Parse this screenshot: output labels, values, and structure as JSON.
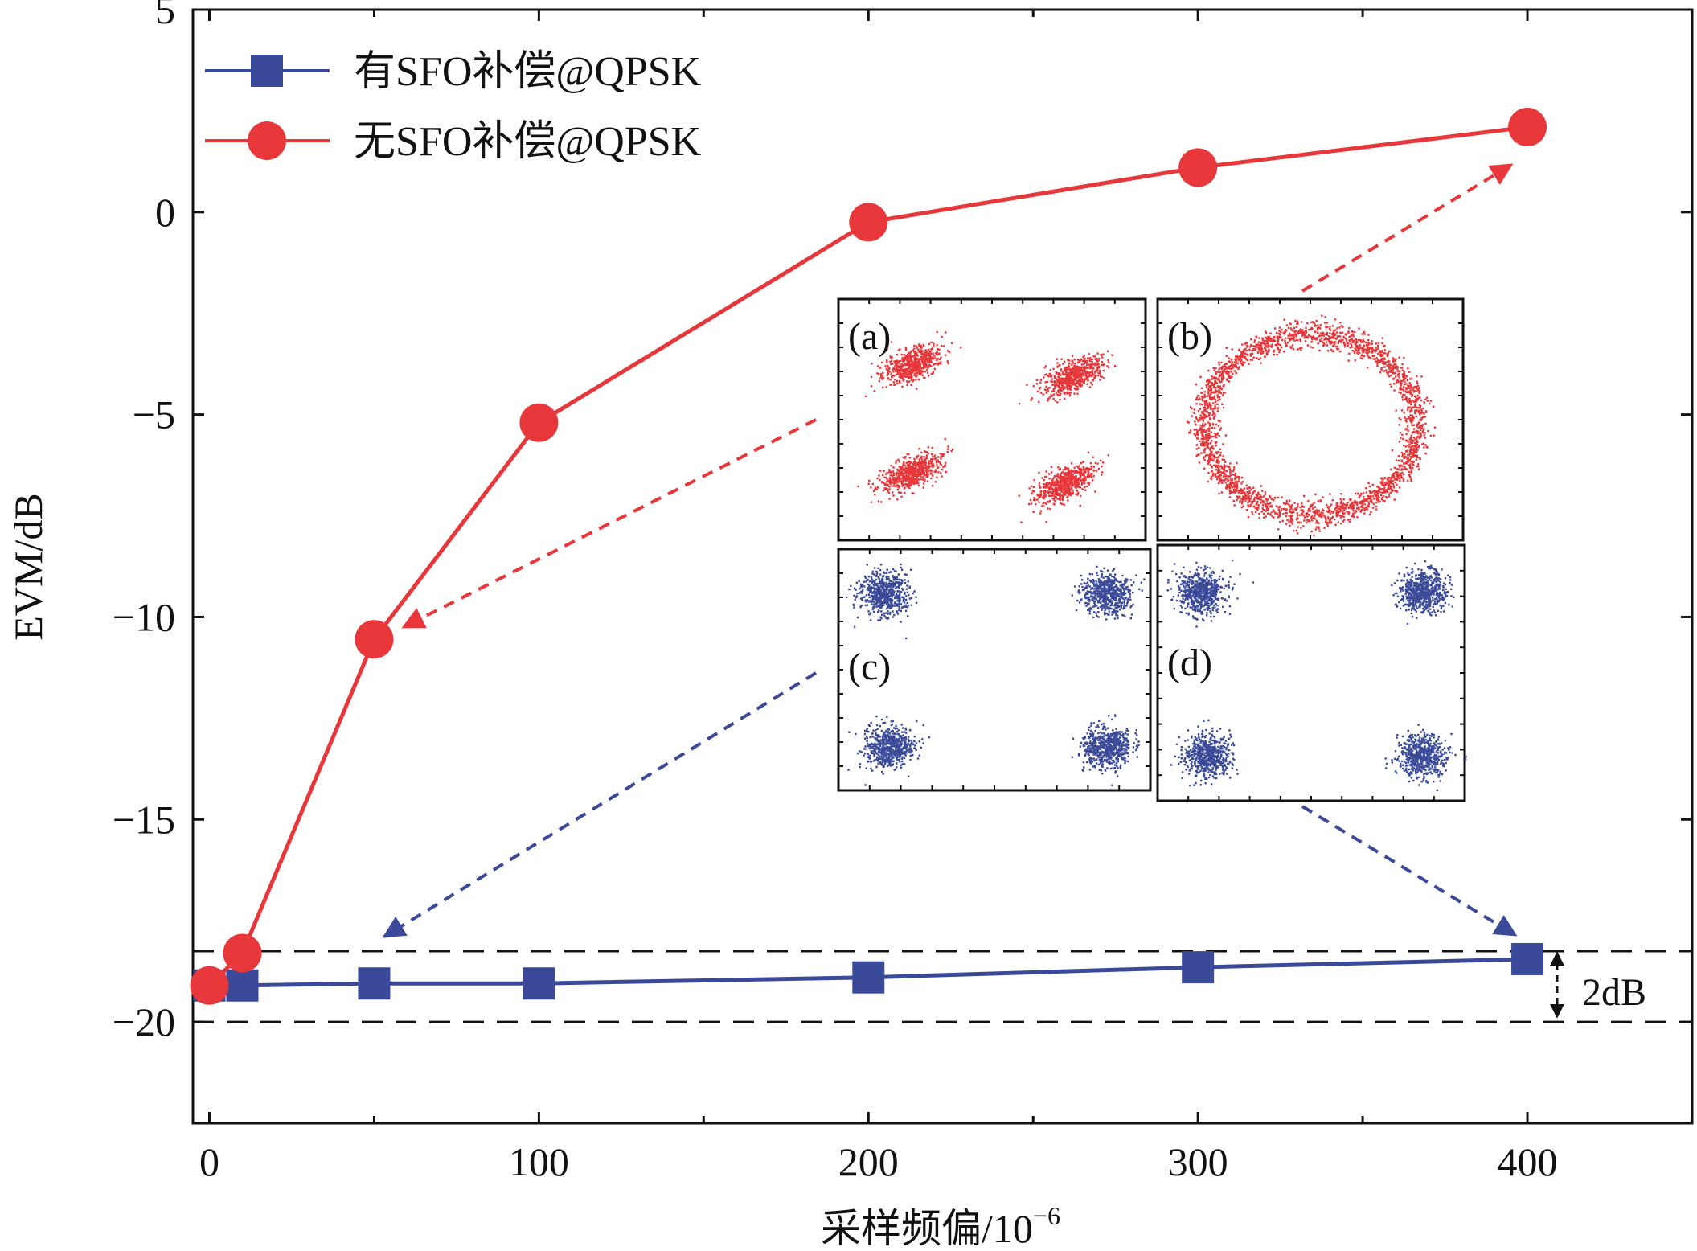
{
  "chart_data": {
    "type": "line",
    "xlabel": "采样频偏/10",
    "xlabel_sup": "−6",
    "ylabel": "EVM/dB",
    "xlim": [
      -5,
      450
    ],
    "ylim": [
      -22.5,
      5
    ],
    "xticks": [
      0,
      100,
      200,
      300,
      400
    ],
    "xtick_labels": [
      "0",
      "100",
      "200",
      "300",
      "400"
    ],
    "xminor": [
      50,
      150,
      250,
      350
    ],
    "yticks": [
      5,
      0,
      -5,
      -10,
      -15,
      -20
    ],
    "ytick_labels": [
      "5",
      "0",
      "−5",
      "−10",
      "−15",
      "−20"
    ],
    "legend_position": "top-left",
    "series": [
      {
        "name": "有SFO补偿@QPSK",
        "color": "#3a4a98",
        "marker": "square",
        "x": [
          0,
          10,
          50,
          100,
          200,
          300,
          400
        ],
        "y": [
          -19.1,
          -19.1,
          -19.05,
          -19.05,
          -18.9,
          -18.65,
          -18.45
        ]
      },
      {
        "name": "无SFO补偿@QPSK",
        "color": "#e8373a",
        "marker": "circle",
        "x": [
          0,
          10,
          50,
          100,
          200,
          300,
          400
        ],
        "y": [
          -19.1,
          -18.3,
          -10.55,
          -5.2,
          -0.25,
          1.1,
          2.1
        ]
      }
    ],
    "reference_lines": {
      "y": [
        -18.25,
        -20.0
      ],
      "style": "dashed"
    },
    "annotation": {
      "text": "2dB"
    },
    "insets": [
      {
        "label": "(a)",
        "kind": "rotated-qpsk",
        "color": "#e8373a"
      },
      {
        "label": "(b)",
        "kind": "ring",
        "color": "#e8373a"
      },
      {
        "label": "(c)",
        "kind": "qpsk",
        "color": "#3a4a98"
      },
      {
        "label": "(d)",
        "kind": "qpsk",
        "color": "#3a4a98"
      }
    ]
  }
}
